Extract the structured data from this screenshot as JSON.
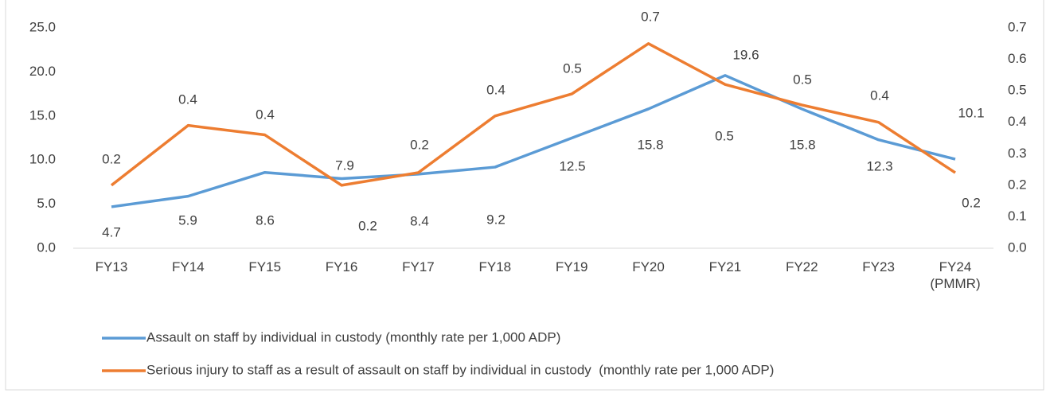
{
  "chart_data": {
    "type": "line",
    "categories": [
      "FY13",
      "FY14",
      "FY15",
      "FY16",
      "FY17",
      "FY18",
      "FY19",
      "FY20",
      "FY21",
      "FY22",
      "FY23",
      "FY24 (PMMR)"
    ],
    "series": [
      {
        "name": "Assault on staff by individual in custody (monthly rate per 1,000 ADP)",
        "color": "#5b9bd5",
        "values": [
          4.7,
          5.9,
          8.6,
          7.9,
          8.4,
          9.2,
          12.5,
          15.8,
          19.6,
          15.8,
          12.3,
          10.1
        ]
      },
      {
        "name": "Serious injury to staff as a result of assault on staff by individual in custody  (monthly rate per 1,000 ADP)",
        "color": "#ed7d31",
        "axis": "y2",
        "values": [
          0.2,
          0.39,
          0.36,
          0.2,
          0.24,
          0.42,
          0.49,
          0.65,
          0.52,
          0.455,
          0.4,
          0.24
        ],
        "value_labels": [
          "0.2",
          "0.4",
          "0.4",
          "0.2",
          "0.2",
          "0.4",
          "0.5",
          "0.7",
          "0.5",
          "0.5",
          "0.4",
          "0.2"
        ]
      }
    ],
    "ylim": [
      0,
      25
    ],
    "yticks": [
      {
        "value": 0,
        "label": "0.0"
      },
      {
        "value": 5,
        "label": "5.0"
      },
      {
        "value": 10,
        "label": "10.0"
      },
      {
        "value": 15,
        "label": "15.0"
      },
      {
        "value": 20,
        "label": "20.0"
      },
      {
        "value": 25,
        "label": "25.0"
      }
    ],
    "y2lim": [
      0,
      0.7
    ],
    "y2ticks": [
      {
        "value": 0,
        "label": "0.0"
      },
      0.1,
      0.2,
      0.3,
      0.4,
      0.5,
      0.6,
      0.7
    ],
    "legend": "bottom"
  }
}
